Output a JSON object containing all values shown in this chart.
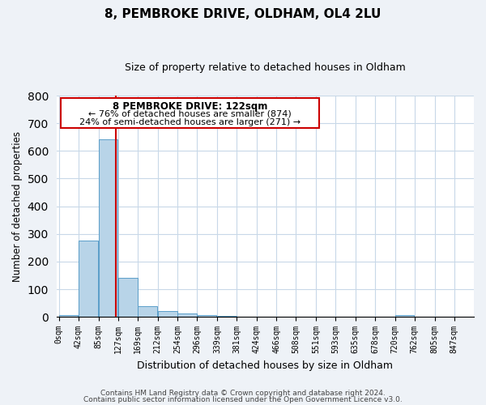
{
  "title": "8, PEMBROKE DRIVE, OLDHAM, OL4 2LU",
  "subtitle": "Size of property relative to detached houses in Oldham",
  "xlabel": "Distribution of detached houses by size in Oldham",
  "ylabel": "Number of detached properties",
  "bar_color": "#b8d4e8",
  "bar_edge_color": "#5a9ec9",
  "marker_color": "#cc0000",
  "marker_value": 122,
  "bins_left": [
    0,
    42,
    85,
    127,
    169,
    212,
    254,
    296,
    339,
    381,
    424,
    466,
    508,
    551,
    593,
    635,
    678,
    720,
    762,
    805
  ],
  "bin_labels": [
    "0sqm",
    "42sqm",
    "85sqm",
    "127sqm",
    "169sqm",
    "212sqm",
    "254sqm",
    "296sqm",
    "339sqm",
    "381sqm",
    "424sqm",
    "466sqm",
    "508sqm",
    "551sqm",
    "593sqm",
    "635sqm",
    "678sqm",
    "720sqm",
    "762sqm",
    "805sqm",
    "847sqm"
  ],
  "bin_width": 42,
  "bar_heights": [
    7,
    275,
    643,
    140,
    38,
    20,
    12,
    7,
    4,
    0,
    0,
    0,
    0,
    0,
    0,
    0,
    0,
    5,
    0,
    0
  ],
  "ylim": [
    0,
    800
  ],
  "xlim": [
    -5,
    889
  ],
  "yticks": [
    0,
    100,
    200,
    300,
    400,
    500,
    600,
    700,
    800
  ],
  "annotation_title": "8 PEMBROKE DRIVE: 122sqm",
  "annotation_line1": "← 76% of detached houses are smaller (874)",
  "annotation_line2": "24% of semi-detached houses are larger (271) →",
  "annotation_box_color": "#ffffff",
  "annotation_box_edge": "#cc0000",
  "footer_line1": "Contains HM Land Registry data © Crown copyright and database right 2024.",
  "footer_line2": "Contains public sector information licensed under the Open Government Licence v3.0.",
  "bg_color": "#eef2f7",
  "plot_bg_color": "#ffffff",
  "grid_color": "#c8d8e8"
}
